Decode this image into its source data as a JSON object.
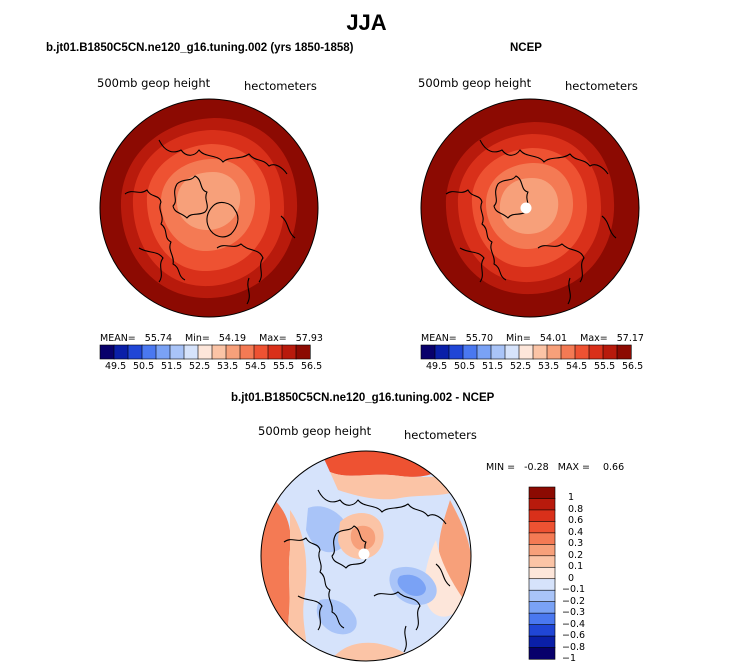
{
  "title": "JJA",
  "panels": {
    "model": {
      "header": "b.jt01.B1850C5CN.ne120_g16.tuning.002 (yrs 1850-1858)",
      "variable": "500mb geop height",
      "units": "hectometers",
      "mean_label": "MEAN=",
      "mean": "55.74",
      "min_label": "Min=",
      "min": "54.19",
      "max_label": "Max=",
      "max": "57.93",
      "colorbar_ticks": [
        "49.5",
        "50.5",
        "51.5",
        "52.5",
        "53.5",
        "54.5",
        "55.5",
        "56.5"
      ]
    },
    "ncep": {
      "header": "NCEP",
      "variable": "500mb geop height",
      "units": "hectometers",
      "mean_label": "MEAN=",
      "mean": "55.70",
      "min_label": "Min=",
      "min": "54.01",
      "max_label": "Max=",
      "max": "57.17",
      "colorbar_ticks": [
        "49.5",
        "50.5",
        "51.5",
        "52.5",
        "53.5",
        "54.5",
        "55.5",
        "56.5"
      ]
    },
    "diff": {
      "header": "b.jt01.B1850C5CN.ne120_g16.tuning.002 - NCEP",
      "variable": "500mb geop height",
      "units": "hectometers",
      "min_label": "MIN =",
      "min": "-0.28",
      "max_label": "MAX =",
      "max": "0.66",
      "colorbar_ticks": [
        "1",
        "0.8",
        "0.6",
        "0.4",
        "0.3",
        "0.2",
        "0.1",
        "0",
        "−0.1",
        "−0.2",
        "−0.3",
        "−0.4",
        "−0.6",
        "−0.8",
        "−1"
      ]
    }
  },
  "colors": {
    "abs_scale": [
      "#08006b",
      "#0a1fa8",
      "#2046d6",
      "#4a78f0",
      "#7aa2f5",
      "#a9c4f8",
      "#d6e3fb",
      "#fde6da",
      "#fbc4a6",
      "#f7a07a",
      "#f47a54",
      "#ee5232",
      "#d9301a",
      "#b81a0c",
      "#8c0a02"
    ],
    "diff_scale": [
      "#8c0a02",
      "#b81a0c",
      "#d9301a",
      "#ee5232",
      "#f47a54",
      "#f7a07a",
      "#fbc4a6",
      "#fde6da",
      "#d6e3fb",
      "#a9c4f8",
      "#7aa2f5",
      "#4a78f0",
      "#2046d6",
      "#0a1fa8",
      "#08006b"
    ],
    "coast": "#000000",
    "pole_marker": "#ffffff"
  }
}
